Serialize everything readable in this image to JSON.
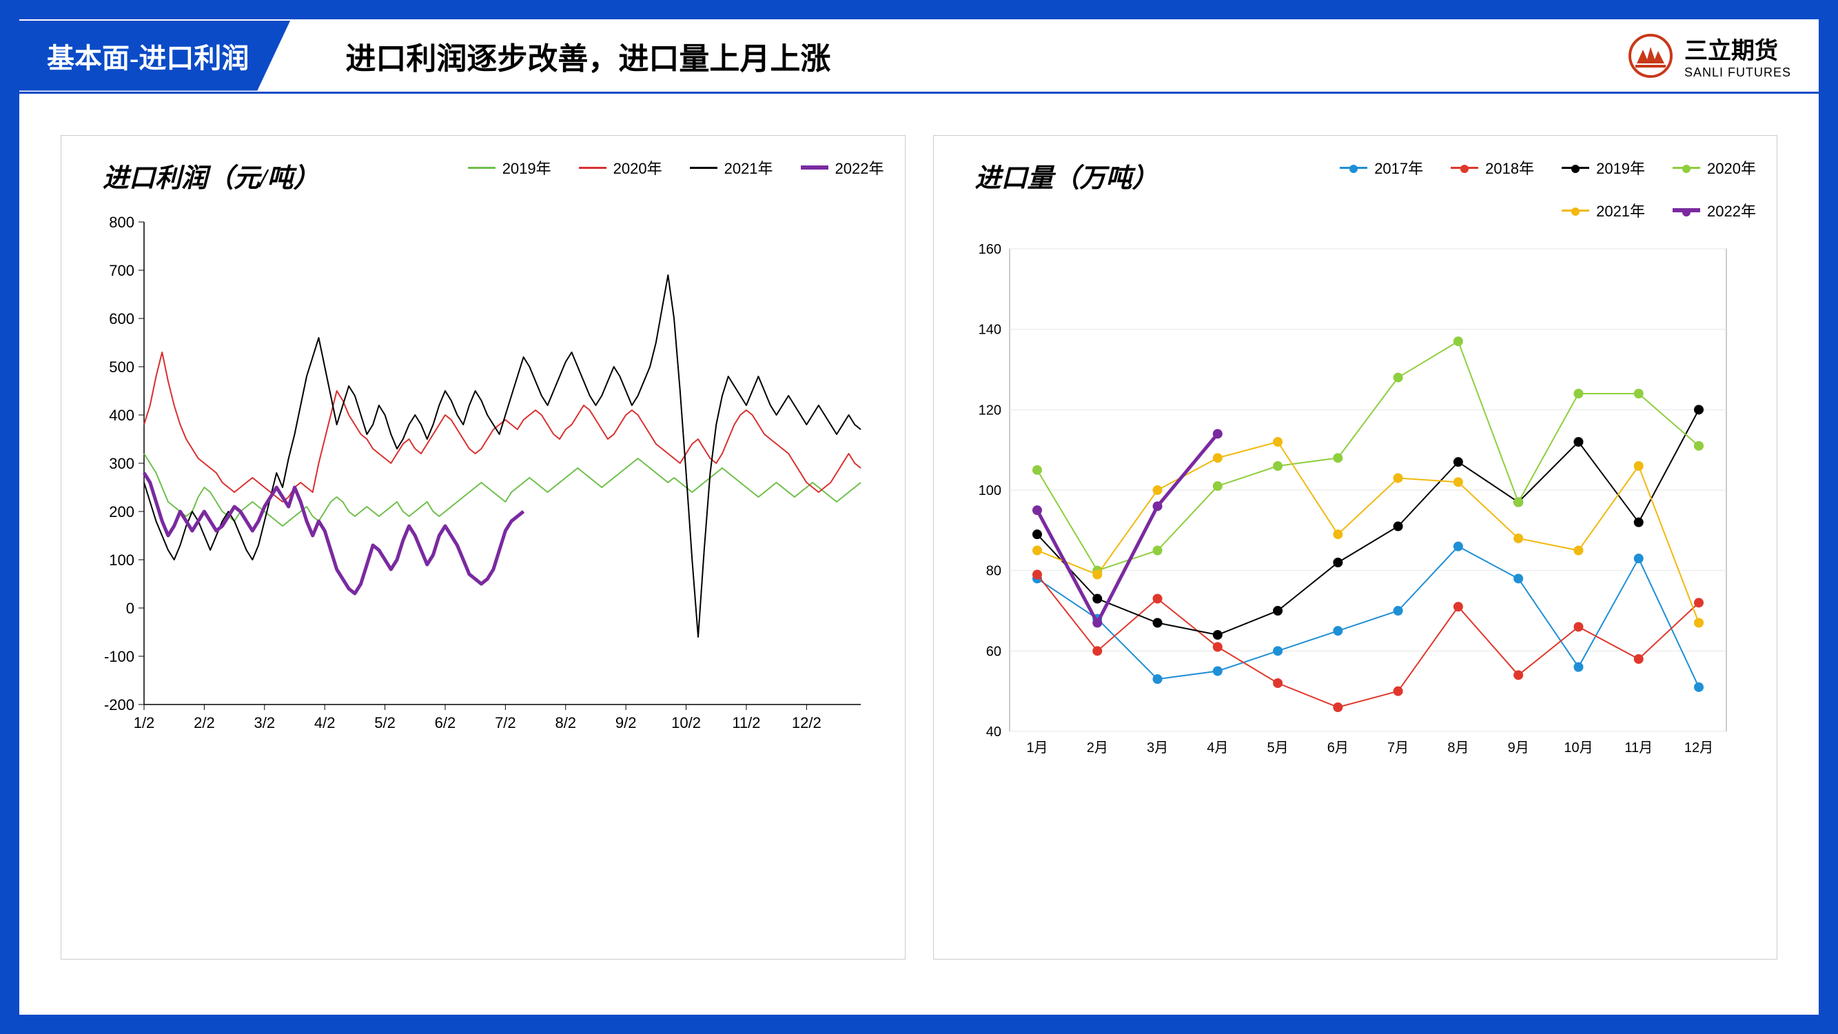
{
  "frame": {
    "border_color": "#0b4bc7",
    "bg": "#ffffff"
  },
  "header": {
    "tab_label": "基本面-进口利润",
    "title": "进口利润逐步改善，进口量上月上涨",
    "logo_name": "三立期货",
    "logo_sub": "SANLI FUTURES",
    "logo_color": "#c8391a"
  },
  "chart1": {
    "type": "line",
    "title": "进口利润（元/吨）",
    "title_fontsize": 38,
    "background_color": "#ffffff",
    "border_color": "#cccccc",
    "axis_color": "#000000",
    "ylim": [
      -200,
      800
    ],
    "ytick_step": 100,
    "xlabels": [
      "1/2",
      "2/2",
      "3/2",
      "4/2",
      "5/2",
      "6/2",
      "7/2",
      "8/2",
      "9/2",
      "10/2",
      "11/2",
      "12/2"
    ],
    "n_points": 120,
    "series": [
      {
        "name": "2019年",
        "color": "#6fbf4b",
        "width": 2,
        "values": [
          320,
          300,
          280,
          250,
          220,
          210,
          200,
          190,
          200,
          230,
          250,
          240,
          220,
          200,
          190,
          180,
          200,
          210,
          220,
          210,
          200,
          190,
          180,
          170,
          180,
          190,
          200,
          210,
          190,
          180,
          200,
          220,
          230,
          220,
          200,
          190,
          200,
          210,
          200,
          190,
          200,
          210,
          220,
          200,
          190,
          200,
          210,
          220,
          200,
          190,
          200,
          210,
          220,
          230,
          240,
          250,
          260,
          250,
          240,
          230,
          220,
          240,
          250,
          260,
          270,
          260,
          250,
          240,
          250,
          260,
          270,
          280,
          290,
          280,
          270,
          260,
          250,
          260,
          270,
          280,
          290,
          300,
          310,
          300,
          290,
          280,
          270,
          260,
          270,
          260,
          250,
          240,
          250,
          260,
          270,
          280,
          290,
          280,
          270,
          260,
          250,
          240,
          230,
          240,
          250,
          260,
          250,
          240,
          230,
          240,
          250,
          260,
          250,
          240,
          230,
          220,
          230,
          240,
          250,
          260
        ]
      },
      {
        "name": "2020年",
        "color": "#d8302f",
        "width": 2,
        "values": [
          380,
          420,
          480,
          530,
          470,
          420,
          380,
          350,
          330,
          310,
          300,
          290,
          280,
          260,
          250,
          240,
          250,
          260,
          270,
          260,
          250,
          240,
          230,
          220,
          230,
          250,
          260,
          250,
          240,
          300,
          350,
          400,
          450,
          430,
          400,
          380,
          360,
          350,
          330,
          320,
          310,
          300,
          320,
          340,
          350,
          330,
          320,
          340,
          360,
          380,
          400,
          390,
          370,
          350,
          330,
          320,
          330,
          350,
          370,
          380,
          390,
          380,
          370,
          390,
          400,
          410,
          400,
          380,
          360,
          350,
          370,
          380,
          400,
          420,
          410,
          390,
          370,
          350,
          360,
          380,
          400,
          410,
          400,
          380,
          360,
          340,
          330,
          320,
          310,
          300,
          320,
          340,
          350,
          330,
          310,
          300,
          320,
          350,
          380,
          400,
          410,
          400,
          380,
          360,
          350,
          340,
          330,
          320,
          300,
          280,
          260,
          250,
          240,
          250,
          260,
          280,
          300,
          320,
          300,
          290
        ]
      },
      {
        "name": "2021年",
        "color": "#000000",
        "width": 2,
        "values": [
          260,
          220,
          180,
          150,
          120,
          100,
          130,
          170,
          200,
          180,
          150,
          120,
          150,
          180,
          200,
          180,
          150,
          120,
          100,
          130,
          180,
          230,
          280,
          250,
          310,
          360,
          420,
          480,
          520,
          560,
          500,
          440,
          380,
          420,
          460,
          440,
          400,
          360,
          380,
          420,
          400,
          360,
          330,
          350,
          380,
          400,
          380,
          350,
          380,
          420,
          450,
          430,
          400,
          380,
          420,
          450,
          430,
          400,
          380,
          360,
          400,
          440,
          480,
          520,
          500,
          470,
          440,
          420,
          450,
          480,
          510,
          530,
          500,
          470,
          440,
          420,
          440,
          470,
          500,
          480,
          450,
          420,
          440,
          470,
          500,
          550,
          620,
          690,
          600,
          450,
          280,
          100,
          -60,
          120,
          280,
          380,
          440,
          480,
          460,
          440,
          420,
          450,
          480,
          450,
          420,
          400,
          420,
          440,
          420,
          400,
          380,
          400,
          420,
          400,
          380,
          360,
          380,
          400,
          380,
          370
        ]
      },
      {
        "name": "2022年",
        "color": "#7a2aa0",
        "width": 5,
        "values": [
          280,
          260,
          220,
          180,
          150,
          170,
          200,
          180,
          160,
          180,
          200,
          180,
          160,
          170,
          190,
          210,
          200,
          180,
          160,
          180,
          210,
          230,
          250,
          230,
          210,
          250,
          220,
          180,
          150,
          180,
          160,
          120,
          80,
          60,
          40,
          30,
          50,
          90,
          130,
          120,
          100,
          80,
          100,
          140,
          170,
          150,
          120,
          90,
          110,
          150,
          170,
          150,
          130,
          100,
          70,
          60,
          50,
          60,
          80,
          120,
          160,
          180,
          190,
          200
        ]
      }
    ],
    "legend": [
      {
        "label": "2019年",
        "color": "#6fbf4b",
        "thick": false
      },
      {
        "label": "2020年",
        "color": "#d8302f",
        "thick": false
      },
      {
        "label": "2021年",
        "color": "#000000",
        "thick": false
      },
      {
        "label": "2022年",
        "color": "#7a2aa0",
        "thick": true
      }
    ]
  },
  "chart2": {
    "type": "line-marker",
    "title": "进口量（万吨）",
    "title_fontsize": 38,
    "background_color": "#ffffff",
    "border_color": "#cccccc",
    "axis_color": "#999999",
    "grid_color": "#e6e6e6",
    "ylim": [
      40,
      160
    ],
    "ytick_step": 20,
    "xlabels": [
      "1月",
      "2月",
      "3月",
      "4月",
      "5月",
      "6月",
      "7月",
      "8月",
      "9月",
      "10月",
      "11月",
      "12月"
    ],
    "marker_radius": 7,
    "series": [
      {
        "name": "2017年",
        "color": "#1f8fd6",
        "width": 2,
        "values": [
          78,
          68,
          53,
          55,
          60,
          65,
          70,
          86,
          78,
          56,
          83,
          51
        ]
      },
      {
        "name": "2018年",
        "color": "#e0372c",
        "width": 2,
        "values": [
          79,
          60,
          73,
          61,
          52,
          46,
          50,
          71,
          54,
          66,
          58,
          72
        ]
      },
      {
        "name": "2019年",
        "color": "#000000",
        "width": 2,
        "values": [
          89,
          73,
          67,
          64,
          70,
          82,
          91,
          107,
          97,
          112,
          92,
          120
        ]
      },
      {
        "name": "2020年",
        "color": "#8fce3e",
        "width": 2,
        "values": [
          105,
          80,
          85,
          101,
          106,
          108,
          128,
          137,
          97,
          124,
          124,
          111
        ]
      },
      {
        "name": "2021年",
        "color": "#f2b90f",
        "width": 2,
        "values": [
          85,
          79,
          100,
          108,
          112,
          89,
          103,
          102,
          88,
          85,
          106,
          67
        ]
      },
      {
        "name": "2022年",
        "color": "#7a2aa0",
        "width": 5,
        "values": [
          95,
          67,
          96,
          114
        ]
      }
    ],
    "legend": [
      {
        "label": "2017年",
        "color": "#1f8fd6",
        "thick": false
      },
      {
        "label": "2018年",
        "color": "#e0372c",
        "thick": false
      },
      {
        "label": "2019年",
        "color": "#000000",
        "thick": false
      },
      {
        "label": "2020年",
        "color": "#8fce3e",
        "thick": false
      },
      {
        "label": "2021年",
        "color": "#f2b90f",
        "thick": false
      },
      {
        "label": "2022年",
        "color": "#7a2aa0",
        "thick": true
      }
    ]
  }
}
